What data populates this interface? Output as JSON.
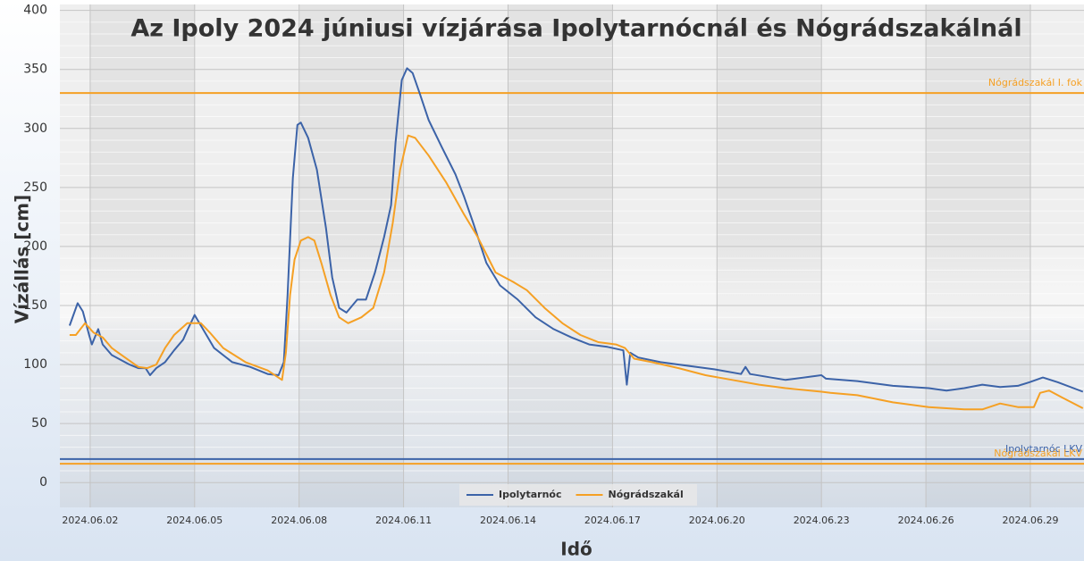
{
  "chart_data": {
    "type": "line",
    "title": "Az Ipoly 2024 júniusi vízjárása Ipolytarnócnál és Nógrádszakálnál",
    "x_label": "Idő",
    "y_label": "Vízállás [cm]",
    "xlim": [
      1.13,
      30.54
    ],
    "ylim": [
      -21,
      405
    ],
    "xticks": [
      {
        "value": 2,
        "label": "2024.06.02"
      },
      {
        "value": 5,
        "label": "2024.06.05"
      },
      {
        "value": 8,
        "label": "2024.06.08"
      },
      {
        "value": 11,
        "label": "2024.06.11"
      },
      {
        "value": 14,
        "label": "2024.06.14"
      },
      {
        "value": 17,
        "label": "2024.06.17"
      },
      {
        "value": 20,
        "label": "2024.06.20"
      },
      {
        "value": 23,
        "label": "2024.06.23"
      },
      {
        "value": 26,
        "label": "2024.06.26"
      },
      {
        "value": 29,
        "label": "2024.06.29"
      }
    ],
    "yticks": [
      0,
      50,
      100,
      150,
      200,
      250,
      300,
      350,
      400
    ],
    "grid": true,
    "legend": "bottom",
    "series": [
      {
        "name": "Ipolytarnóc",
        "color": "#3c63a8",
        "x": [
          1.41,
          1.64,
          1.79,
          1.97,
          2.05,
          2.23,
          2.36,
          2.62,
          3.13,
          3.38,
          3.59,
          3.72,
          3.9,
          4.15,
          4.41,
          4.67,
          4.79,
          5.0,
          5.18,
          5.56,
          6.08,
          6.59,
          7.1,
          7.41,
          7.56,
          7.67,
          7.82,
          7.95,
          8.05,
          8.26,
          8.51,
          8.77,
          8.95,
          9.15,
          9.36,
          9.67,
          9.92,
          10.18,
          10.44,
          10.64,
          10.77,
          10.95,
          11.1,
          11.26,
          11.46,
          11.72,
          12.1,
          12.49,
          12.74,
          13.0,
          13.38,
          13.77,
          14.28,
          14.79,
          15.31,
          15.82,
          16.33,
          16.85,
          17.31,
          17.41,
          17.51,
          17.74,
          18.38,
          18.9,
          19.41,
          19.92,
          20.69,
          20.82,
          20.95,
          21.97,
          23.0,
          23.13,
          24.03,
          25.05,
          26.08,
          26.59,
          27.1,
          27.62,
          28.13,
          28.64,
          28.97,
          29.36,
          29.79,
          30.51
        ],
        "values": [
          133,
          152,
          145,
          125,
          117,
          130,
          117,
          108,
          100,
          97,
          97,
          91,
          97,
          102,
          112,
          121,
          129,
          142,
          133,
          114,
          102,
          98,
          92,
          91,
          102,
          159,
          258,
          303,
          305,
          292,
          265,
          216,
          174,
          148,
          144,
          155,
          155,
          178,
          208,
          235,
          288,
          341,
          351,
          347,
          330,
          307,
          284,
          261,
          242,
          220,
          186,
          167,
          155,
          140,
          130,
          123,
          117,
          115,
          112,
          83,
          110,
          106,
          102,
          100,
          98,
          96,
          92,
          98,
          92,
          87,
          91,
          88,
          86,
          82,
          80,
          78,
          80,
          83,
          81,
          82,
          85,
          89,
          85,
          77
        ]
      },
      {
        "name": "Nógrádszakál",
        "color": "#f5a024",
        "x": [
          1.41,
          1.59,
          1.85,
          2.1,
          2.36,
          2.62,
          3.0,
          3.38,
          3.64,
          3.9,
          4.15,
          4.41,
          4.79,
          5.18,
          5.44,
          5.82,
          6.46,
          7.1,
          7.51,
          7.62,
          7.74,
          7.87,
          8.05,
          8.26,
          8.44,
          8.64,
          8.9,
          9.15,
          9.41,
          9.79,
          10.13,
          10.44,
          10.69,
          10.9,
          11.13,
          11.33,
          11.72,
          12.23,
          12.74,
          13.13,
          13.64,
          14.15,
          14.54,
          15.05,
          15.56,
          16.08,
          16.59,
          17.1,
          17.36,
          17.62,
          18.13,
          18.9,
          19.67,
          20.44,
          21.21,
          21.97,
          23.0,
          23.26,
          24.03,
          25.05,
          26.08,
          27.1,
          27.62,
          28.13,
          28.64,
          29.1,
          29.28,
          29.54,
          29.92,
          30.51
        ],
        "values": [
          125,
          125,
          135,
          127,
          123,
          114,
          106,
          98,
          97,
          100,
          114,
          125,
          135,
          135,
          127,
          114,
          102,
          95,
          87,
          110,
          159,
          189,
          205,
          208,
          205,
          186,
          159,
          140,
          135,
          140,
          148,
          178,
          220,
          265,
          294,
          292,
          277,
          254,
          227,
          208,
          178,
          170,
          163,
          148,
          135,
          125,
          119,
          117,
          114,
          105,
          102,
          97,
          91,
          87,
          83,
          80,
          77,
          76,
          74,
          68,
          64,
          62,
          62,
          67,
          64,
          64,
          76,
          78,
          72,
          63
        ]
      }
    ],
    "reference_lines": [
      {
        "label": "Nógrádszakál I. fok",
        "value": 330,
        "color": "#f5a024"
      },
      {
        "label": "Ipolytarnóc LKV",
        "value": 20,
        "color": "#3c63a8"
      },
      {
        "label": "Nógrádszakál LKV",
        "value": 16,
        "color": "#f5a024"
      }
    ]
  }
}
